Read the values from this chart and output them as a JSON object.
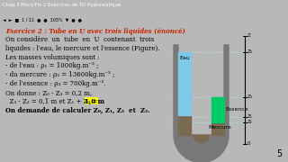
{
  "bg_color": "#b8b8b8",
  "titlebar_color": "#2a3a6a",
  "toolbar_color": "#d0ccc8",
  "content_bg": "#f0eeea",
  "title_text": "Exercice 2 : Tube en U avec trois liquides (énoncé)",
  "title_color": "#cc2200",
  "body_lines": [
    "On considère  un  tube  en  U  contenant  trois",
    "liquides : l'eau, le mercure et l'essence (Figure).",
    "Les masses volumiques sont :",
    "- de l'eau : ρ₁ = 1000kg.m⁻³ ;",
    "- du mercure : ρ₂ = 13600kg.m⁻³ ;",
    "- de l'essence : ρ₃ = 700kg.m⁻³.",
    "On donne : Z₀ - Z₃ = 0,2 m,",
    "  Z₃ - Z₂ = 0,1 m et Z₁ + Z₂ = 1,0 m",
    "On demande de calculer Z₀, Z₁, Z₂  et  Z₃."
  ],
  "highlight_line": 7,
  "highlight_start": "  Z₃ - Z₂ = 0,1 m et Z₁ + Z₂ = ",
  "highlight_end": "1,0 m",
  "tube_wall_color": "#787878",
  "mercury_color": "#7a6a50",
  "water_color": "#7ec8e8",
  "essence_color": "#00cc66",
  "label_eau": "Eau",
  "label_essence": "Essence",
  "label_mercure": "Mercure",
  "page_number": "5",
  "titlebar_text": "Chap 3 Meca Flu 2 Exercices de TD Hydrostatique",
  "toolbar_text": "◄  ►  ■  1 / 11  ●  ●  105%  ▼  ●  ●"
}
